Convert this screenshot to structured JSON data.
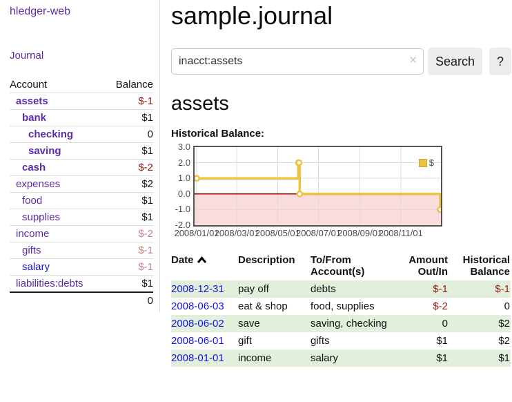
{
  "sidebar": {
    "brand": "hledger-web",
    "journal_link": "Journal",
    "table": {
      "headers": {
        "account": "Account",
        "balance": "Balance"
      },
      "rows": [
        {
          "account": "assets",
          "balance": "$-1"
        },
        {
          "account": "bank",
          "balance": "$1"
        },
        {
          "account": "checking",
          "balance": "0"
        },
        {
          "account": "saving",
          "balance": "$1"
        },
        {
          "account": "cash",
          "balance": "$-2"
        },
        {
          "account": "expenses",
          "balance": "$2"
        },
        {
          "account": "food",
          "balance": "$1"
        },
        {
          "account": "supplies",
          "balance": "$1"
        },
        {
          "account": "income",
          "balance": "$-2"
        },
        {
          "account": "gifts",
          "balance": "$-1"
        },
        {
          "account": "salary",
          "balance": "$-1"
        },
        {
          "account": "liabilities:debts",
          "balance": "$1"
        }
      ],
      "total": "0"
    }
  },
  "main": {
    "title": "sample.journal",
    "search": {
      "value": "inacct:assets",
      "clear_icon": "✕",
      "search_button": "Search",
      "help_button": "?"
    },
    "account_heading": "assets",
    "chart_label": "Historical Balance:",
    "register": {
      "headers": {
        "date": "Date",
        "description": "Description",
        "accounts": "To/From Account(s)",
        "amount": "Amount Out/In",
        "balance": "Historical Balance"
      },
      "rows": [
        {
          "date": "2008-12-31",
          "description": "pay off",
          "accounts": "debts",
          "amount": "$-1",
          "balance": "$-1"
        },
        {
          "date": "2008-06-03",
          "description": "eat & shop",
          "accounts": "food, supplies",
          "amount": "$-2",
          "balance": "0"
        },
        {
          "date": "2008-06-02",
          "description": "save",
          "accounts": "saving, checking",
          "amount": "0",
          "balance": "$2"
        },
        {
          "date": "2008-06-01",
          "description": "gift",
          "accounts": "gifts",
          "amount": "$1",
          "balance": "$2"
        },
        {
          "date": "2008-01-01",
          "description": "income",
          "accounts": "salary",
          "amount": "$1",
          "balance": "$1"
        }
      ]
    }
  },
  "chart_data": {
    "type": "line",
    "step": true,
    "title": "Historical Balance:",
    "series": [
      {
        "name": "$",
        "color": "#edc240",
        "points": [
          [
            "2008-01-01",
            1
          ],
          [
            "2008-06-01",
            2
          ],
          [
            "2008-06-02",
            2
          ],
          [
            "2008-06-03",
            0
          ],
          [
            "2008-12-31",
            -1
          ]
        ]
      }
    ],
    "ylim": [
      -2,
      3
    ],
    "yticks": [
      3.0,
      2.0,
      1.0,
      0.0,
      -1.0,
      -2.0
    ],
    "xticks": [
      "2008/01/01",
      "2008/03/01",
      "2008/05/01",
      "2008/07/01",
      "2008/09/01",
      "2008/11/01"
    ],
    "x_epoch": "2008-01-01",
    "x_range_days": 365,
    "grid": true,
    "legend_position": "top-right",
    "negative_fill": "#fadcdc",
    "zero_line_color": "#8b0000",
    "grid_color": "#dcdcdc",
    "marker_fill": "#ffffff"
  },
  "colors": {
    "purple_link": "#5d2ca8",
    "blue_link": "#1414e0",
    "negative_strong": "#8f1616",
    "negative_muted": "#c48383",
    "row_green": "#e2efdb",
    "series_gold": "#edc240"
  }
}
